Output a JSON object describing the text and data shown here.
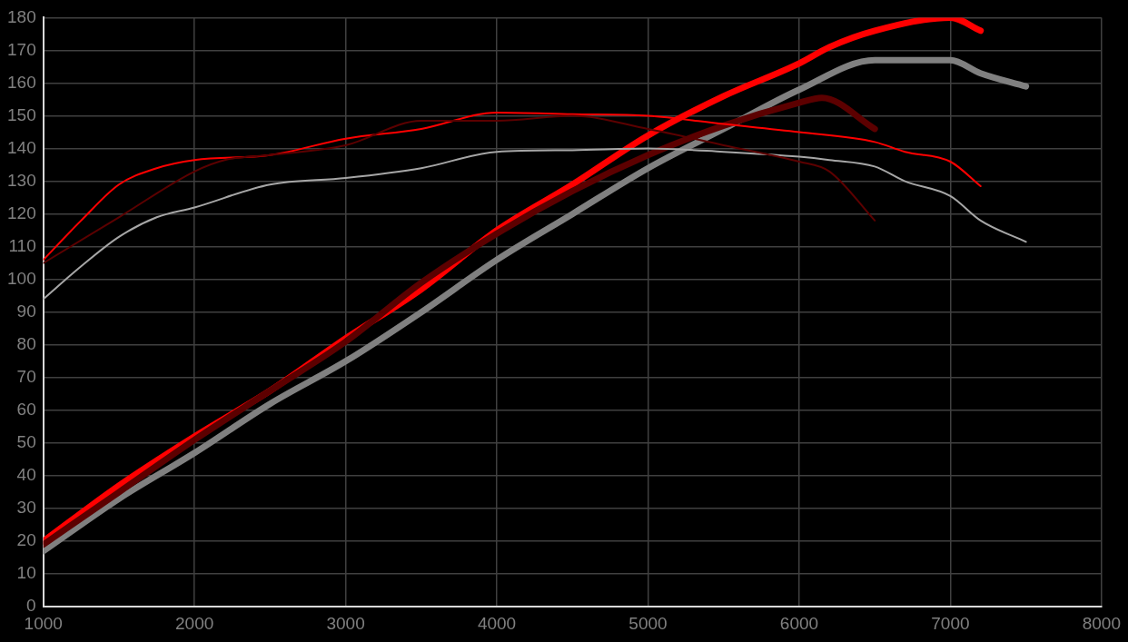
{
  "chart_data": {
    "type": "line",
    "xlim": [
      1000,
      8000
    ],
    "xticks": [
      1000,
      2000,
      3000,
      4000,
      5000,
      6000,
      7000,
      8000
    ],
    "ylim": [
      0,
      180
    ],
    "yticks": [
      0,
      10,
      20,
      30,
      40,
      50,
      60,
      70,
      80,
      90,
      100,
      110,
      120,
      130,
      140,
      150,
      160,
      170,
      180
    ],
    "grid": true,
    "legend": false,
    "marker": "none",
    "line_style": "solid",
    "series": [
      {
        "color": "#5c0000",
        "x": [
          1000,
          1500,
          2000,
          2200,
          2500,
          3000,
          3500,
          4000,
          4500,
          5000,
          5500,
          6000,
          6200,
          6500
        ],
        "values": [
          105,
          119,
          133,
          136.5,
          138,
          141,
          148.5,
          148.5,
          150,
          146,
          141,
          136,
          133,
          118
        ]
      },
      {
        "color": "#a6a6a6",
        "x": [
          1000,
          1250,
          1500,
          1750,
          2000,
          2500,
          3000,
          3500,
          4000,
          4500,
          5000,
          5500,
          6000,
          6200,
          6500,
          6700,
          7000,
          7200,
          7500
        ],
        "values": [
          94,
          104,
          113,
          119,
          122,
          129,
          131,
          134,
          139,
          139.5,
          140,
          139,
          137.5,
          136.5,
          134.5,
          130,
          125.5,
          118,
          111.5
        ]
      },
      {
        "color": "#ff0000",
        "x": [
          1000,
          1250,
          1500,
          1750,
          2000,
          2500,
          3000,
          3500,
          4000,
          4500,
          5000,
          5500,
          6000,
          6500,
          6700,
          7000,
          7200
        ],
        "values": [
          106,
          118,
          129,
          134,
          136.5,
          138,
          143,
          146,
          151,
          150.5,
          150,
          147.5,
          145,
          142,
          139,
          136,
          128.5
        ]
      },
      {
        "color": "#5c0000",
        "x": [
          1000,
          1500,
          2000,
          2500,
          3000,
          3500,
          4000,
          4500,
          5000,
          5500,
          6000,
          6150,
          6500
        ],
        "values": [
          19,
          35,
          51,
          66,
          81,
          99,
          114,
          127,
          138,
          147,
          154,
          155.5,
          146
        ]
      },
      {
        "color": "#808080",
        "x": [
          1000,
          1500,
          2000,
          2500,
          3000,
          3500,
          4000,
          4500,
          5000,
          5500,
          6000,
          6500,
          6700,
          7000,
          7200,
          7500
        ],
        "values": [
          17,
          33,
          47,
          62,
          75,
          90,
          106,
          120,
          134,
          146,
          158,
          167,
          167,
          167,
          163,
          159
        ]
      },
      {
        "color": "#ff0000",
        "x": [
          1000,
          1500,
          2000,
          2500,
          3000,
          3500,
          4000,
          4500,
          5000,
          5500,
          6000,
          6200,
          6500,
          7000,
          7200
        ],
        "values": [
          20,
          37,
          52,
          66,
          82,
          97,
          115,
          129,
          144,
          156,
          166,
          171,
          176,
          180,
          176
        ]
      }
    ]
  }
}
